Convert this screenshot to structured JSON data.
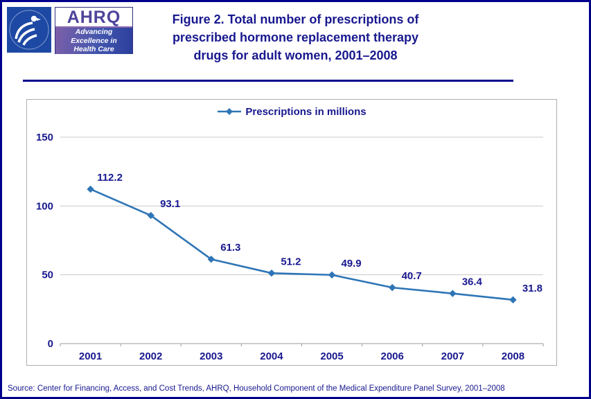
{
  "page": {
    "title_lines": [
      "Figure 2. Total number of prescriptions of",
      "prescribed hormone replacement therapy",
      "drugs for adult women, 2001–2008"
    ],
    "source": "Source: Center for Financing, Access, and Cost Trends, AHRQ, Household Component of the Medical Expenditure Panel Survey, 2001–2008"
  },
  "logos": {
    "ahrq_acronym": "AHRQ",
    "ahrq_tagline_lines": [
      "Advancing",
      "Excellence in",
      "Health Care"
    ]
  },
  "chart_data": {
    "type": "line",
    "title": "Total number of prescriptions of prescribed hormone replacement therapy drugs for adult women, 2001–2008",
    "categories": [
      "2001",
      "2002",
      "2003",
      "2004",
      "2005",
      "2006",
      "2007",
      "2008"
    ],
    "series": [
      {
        "name": "Prescriptions in millions",
        "values": [
          112.2,
          93.1,
          61.3,
          51.2,
          49.9,
          40.7,
          36.4,
          31.8
        ]
      }
    ],
    "ylim": [
      0,
      150
    ],
    "yticks": [
      0,
      50,
      100,
      150
    ],
    "grid": true,
    "legend_position": "top",
    "colors": {
      "line": "#2e75b6",
      "text": "#18188f",
      "gridline": "#c9c9c9"
    }
  }
}
